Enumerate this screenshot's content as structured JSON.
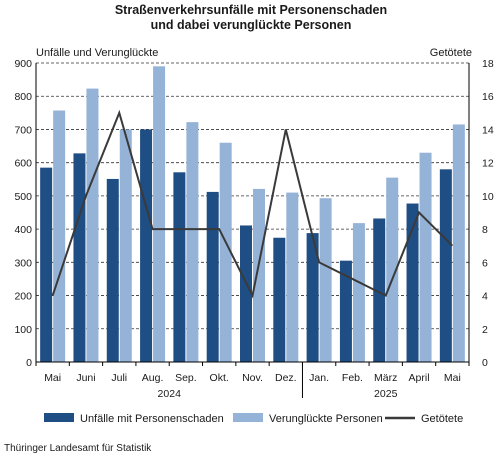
{
  "chart_data": {
    "type": "bar",
    "title_line1": "Straßenverkehrsunfälle mit Personenschaden",
    "title_line2": "und dabei verunglückte Personen",
    "ylabel_left": "Unfälle und Verunglückte",
    "ylabel_right": "Getötete",
    "ylim_left": [
      0,
      900
    ],
    "yticks_left": [
      "0",
      "100",
      "200",
      "300",
      "400",
      "500",
      "600",
      "700",
      "800",
      "900"
    ],
    "ylim_right": [
      0,
      18
    ],
    "yticks_right": [
      "0",
      "2",
      "4",
      "6",
      "8",
      "10",
      "12",
      "14",
      "16",
      "18"
    ],
    "categories": [
      "Mai",
      "Juni",
      "Juli",
      "Aug.",
      "Sep.",
      "Okt.",
      "Nov.",
      "Dez.",
      "Jan.",
      "Feb.",
      "März",
      "April",
      "Mai"
    ],
    "year_labels": [
      "2024",
      "2025"
    ],
    "grid": "horizontal dashed",
    "legend_position": "bottom",
    "series": [
      {
        "name": "Unfälle mit Personenschaden",
        "kind": "bar",
        "axis": "left",
        "color": "#1f4e84",
        "values": [
          585,
          628,
          551,
          700,
          571,
          512,
          411,
          374,
          388,
          305,
          432,
          477,
          580
        ]
      },
      {
        "name": "Verunglückte Personen",
        "kind": "bar",
        "axis": "left",
        "color": "#95b3d7",
        "values": [
          757,
          823,
          700,
          890,
          722,
          660,
          521,
          510,
          493,
          418,
          555,
          630,
          715
        ]
      },
      {
        "name": "Getötete",
        "kind": "line",
        "axis": "right",
        "color": "#3a3a3a",
        "values": [
          4,
          10,
          15,
          8,
          8,
          8,
          4,
          14,
          6,
          5,
          4,
          9,
          7
        ]
      }
    ],
    "source": "Thüringer Landesamt für Statistik"
  }
}
